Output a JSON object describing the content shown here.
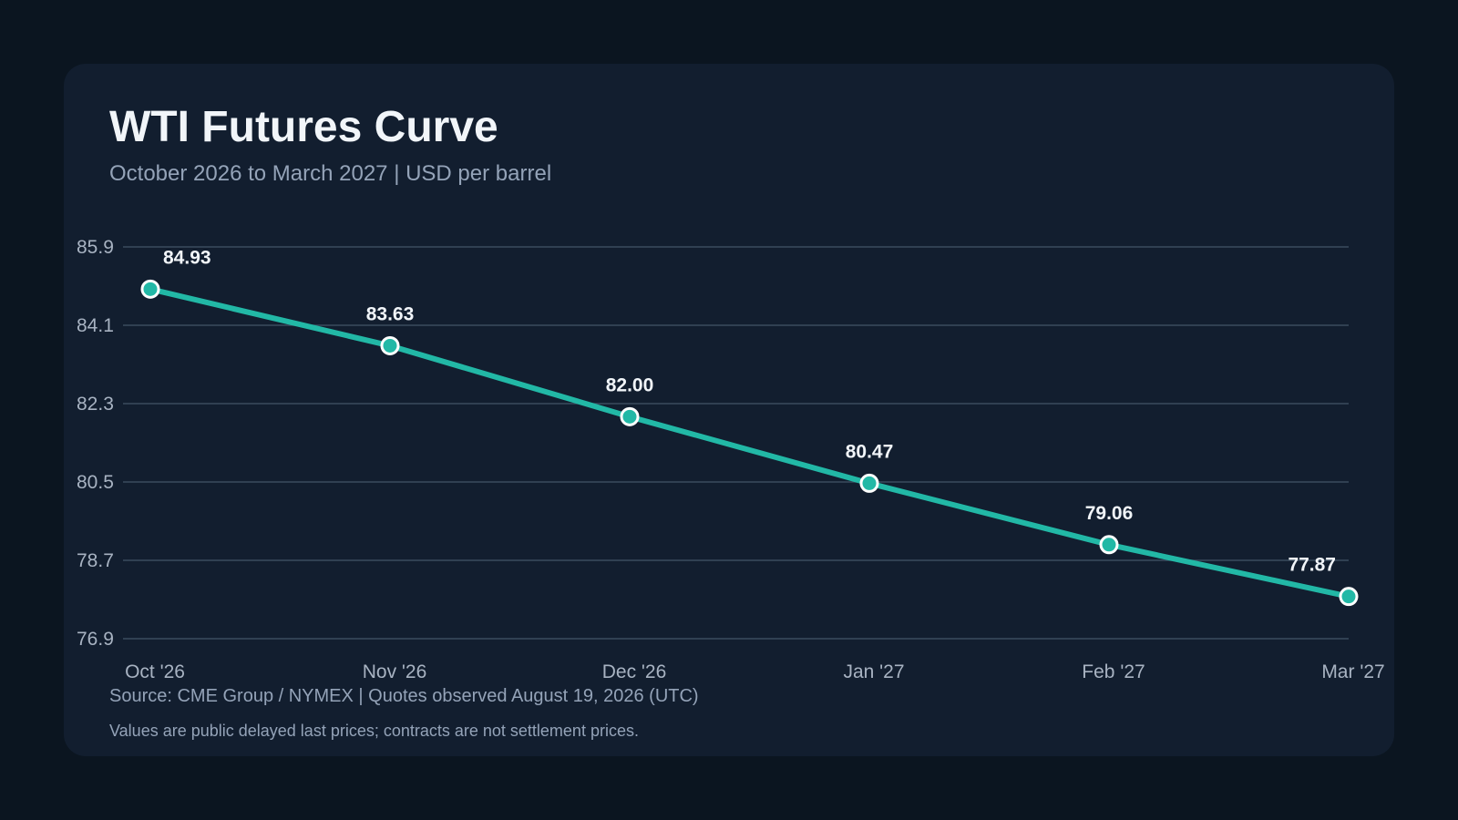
{
  "card": {
    "title": "WTI Futures Curve",
    "subtitle": "October 2026 to March 2027 | USD per barrel",
    "source": "Source: CME Group / NYMEX | Quotes observed August 19, 2026 (UTC)",
    "note": "Values are public delayed last prices; contracts are not settlement prices."
  },
  "colors": {
    "background": "#0b1520",
    "card": "#121e2f",
    "line": "#22b8a6",
    "grid": "#3a4b5e",
    "marker_stroke": "#ffffff"
  },
  "chart_data": {
    "type": "line",
    "title": "WTI Futures Curve",
    "subtitle": "October 2026 to March 2027 | USD per barrel",
    "categories": [
      "Oct '26",
      "Nov '26",
      "Dec '26",
      "Jan '27",
      "Feb '27",
      "Mar '27"
    ],
    "series": [
      {
        "values": [
          84.93,
          83.63,
          82.0,
          80.47,
          79.06,
          77.87
        ],
        "labels": [
          "84.93",
          "83.63",
          "82.00",
          "80.47",
          "79.06",
          "77.87"
        ]
      }
    ],
    "yticks": [
      "76.9",
      "78.7",
      "80.5",
      "82.3",
      "84.1",
      "85.9"
    ],
    "ylim": [
      76.9,
      85.9
    ],
    "grid": true,
    "legend": "none",
    "xlabel": "",
    "ylabel": ""
  }
}
